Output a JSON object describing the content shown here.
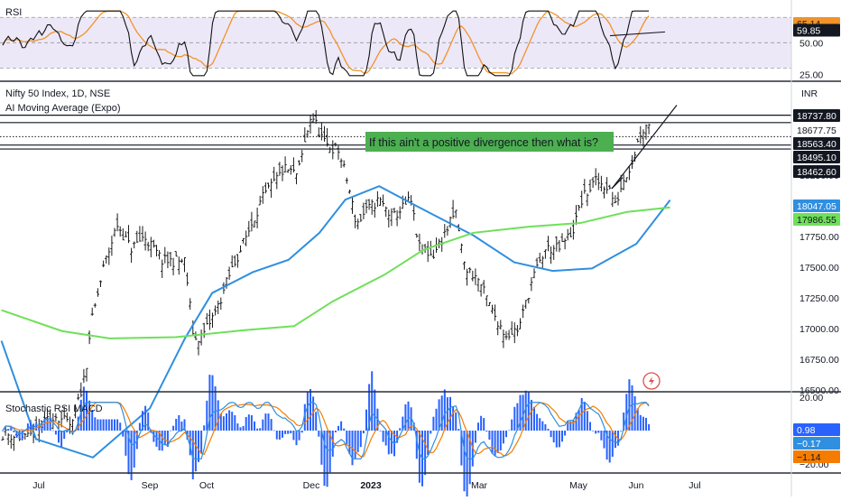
{
  "symbol_line": "Nifty 50 Index, 1D, NSE",
  "indicator_line": "AI Moving Average (Expo)",
  "currency": "INR",
  "annotation": "If this ain't a positive divergence then what is?",
  "colors": {
    "candle": "#1a1a1a",
    "fast_ma": "#2f8fe0",
    "slow_ma": "#6fe05a",
    "rsi_line": "#111111",
    "rsi_signal": "#f0932b",
    "rsi_band": "#ede8f7",
    "annotation_bg": "#4caf50",
    "macd_hist": "#2962ff",
    "stoch_k": "#2f8fe0",
    "stoch_d": "#f57c00"
  },
  "chart_data": [
    {
      "type": "line",
      "title": "RSI",
      "ylim": [
        21,
        78
      ],
      "levels": [
        70,
        50,
        30
      ],
      "ticks": [
        "50.00",
        "25.00"
      ],
      "series": [],
      "value_labels": [
        {
          "text": "65.14",
          "bg": "#f0932b",
          "fg": "#131722"
        },
        {
          "text": "59.85",
          "bg": "#131722",
          "fg": "#ffffff"
        }
      ]
    },
    {
      "type": "candlestick",
      "ylim": [
        16500,
        19000
      ],
      "y_ticks": [
        "18250.00",
        "18000.00",
        "17750.00",
        "17500.00",
        "17250.00",
        "17000.00",
        "16750.00",
        "16500.00"
      ],
      "x_ticks": [
        "Jul",
        "Sep",
        "Oct",
        "Dec",
        "2023",
        "Mar",
        "May",
        "Jun",
        "Jul"
      ],
      "horizontal_levels": [
        18737.8,
        18677.75,
        18563.4,
        18495.1,
        18462.6
      ],
      "dotted_levels": [
        18563.4
      ],
      "value_labels": [
        {
          "text": "18737.80",
          "bg": "#131722",
          "fg": "#ffffff"
        },
        {
          "text": "18677.75",
          "bg": "#ffffff",
          "fg": "#131722"
        },
        {
          "text": "18563.40",
          "bg": "#131722",
          "fg": "#ffffff"
        },
        {
          "text": "18495.10",
          "bg": "#131722",
          "fg": "#ffffff"
        },
        {
          "text": "18462.60",
          "bg": "#131722",
          "fg": "#ffffff"
        },
        {
          "text": "18047.05",
          "bg": "#2f8fe0",
          "fg": "#ffffff"
        },
        {
          "text": "17986.55",
          "bg": "#6fe05a",
          "fg": "#131722"
        }
      ],
      "moving_averages": [
        {
          "role": "fast",
          "color": "#2f8fe0",
          "points": [
            [
              "Jun 13",
              16900
            ],
            [
              "Jul 1",
              16100
            ],
            [
              "Aug 1",
              15950
            ],
            [
              "Sep 1",
              16350
            ],
            [
              "Sep 20",
              16920
            ],
            [
              "Oct 4",
              17290
            ],
            [
              "Oct 26",
              17460
            ],
            [
              "Nov 15",
              17560
            ],
            [
              "Dec 1",
              17780
            ],
            [
              "Dec 15",
              18050
            ],
            [
              "Jan 5",
              18160
            ],
            [
              "Jan 25",
              18000
            ],
            [
              "Feb 10",
              17900
            ],
            [
              "Feb 28",
              17760
            ],
            [
              "Mar 20",
              17540
            ],
            [
              "Apr 10",
              17470
            ],
            [
              "May 1",
              17490
            ],
            [
              "May 25",
              17690
            ],
            [
              "Jun 13",
              18047
            ]
          ]
        },
        {
          "role": "slow",
          "color": "#6fe05a",
          "points": [
            [
              "Jun 13",
              17150
            ],
            [
              "Jul 15",
              16980
            ],
            [
              "Aug 10",
              16920
            ],
            [
              "Sep 15",
              16930
            ],
            [
              "Oct 20",
              16985
            ],
            [
              "Nov 18",
              17020
            ],
            [
              "Dec 8",
              17220
            ],
            [
              "Jan 8",
              17440
            ],
            [
              "Feb 1",
              17640
            ],
            [
              "Feb 28",
              17780
            ],
            [
              "Mar 28",
              17830
            ],
            [
              "Apr 25",
              17860
            ],
            [
              "May 20",
              17950
            ],
            [
              "Jun 13",
              17987
            ]
          ]
        }
      ],
      "trendline_points": [
        [
          "May 22",
          18140
        ],
        [
          "Jun 20",
          18820
        ]
      ]
    },
    {
      "type": "bar",
      "title": "Stochastic RSI MACD",
      "ylim": [
        -22,
        22
      ],
      "y_ticks": [
        "20.00",
        "−20.00"
      ],
      "series": [
        {
          "name": "",
          "role": "histogram"
        },
        {
          "name": "",
          "role": "k"
        },
        {
          "name": "",
          "role": "d"
        }
      ],
      "value_labels": [
        {
          "text": "0.98",
          "bg": "#2962ff",
          "fg": "#ffffff"
        },
        {
          "text": "−0.17",
          "bg": "#2f8fe0",
          "fg": "#ffffff"
        },
        {
          "text": "−1.14",
          "bg": "#f57c00",
          "fg": "#131722"
        }
      ]
    }
  ]
}
